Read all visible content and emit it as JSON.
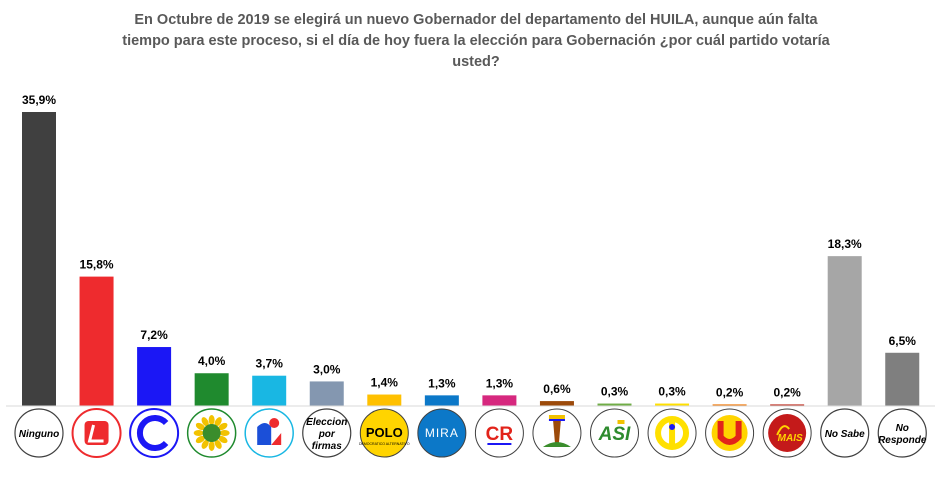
{
  "title": "En Octubre de 2019 se elegirá un nuevo Gobernador del departamento  del HUILA, aunque aún falta tiempo para este proceso, si el día de hoy fuera la elección para Gobernación ¿por cuál partido votaría usted?",
  "chart_data": {
    "type": "bar",
    "title": "En Octubre de 2019 se elegirá un nuevo Gobernador del departamento  del HUILA, aunque aún falta tiempo para este proceso, si el día de hoy fuera la elección para Gobernación ¿por cuál partido votaría usted?",
    "xlabel": "",
    "ylabel": "",
    "ylim": [
      0,
      36
    ],
    "grid": false,
    "legend": "none",
    "value_labels": [
      "35,9%",
      "15,8%",
      "7,2%",
      "4,0%",
      "3,7%",
      "3,0%",
      "1,4%",
      "1,3%",
      "1,3%",
      "0,6%",
      "0,3%",
      "0,3%",
      "0,2%",
      "0,2%",
      "18,3%",
      "6,5%"
    ],
    "values": [
      35.9,
      15.8,
      7.2,
      4.0,
      3.7,
      3.0,
      1.4,
      1.3,
      1.3,
      0.6,
      0.3,
      0.3,
      0.2,
      0.2,
      18.3,
      6.5
    ],
    "colors": [
      "#404040",
      "#ee2b2e",
      "#1b17f5",
      "#1f8a2e",
      "#19b7e3",
      "#8497b0",
      "#ffc000",
      "#0c78c8",
      "#d6287e",
      "#9c4a0a",
      "#70ad47",
      "#ffe000",
      "#ef7c10",
      "#c0392b",
      "#a6a6a6",
      "#7f7f7f"
    ],
    "categories": [
      {
        "text_lines": [
          "Ninguno"
        ],
        "icon": "text-circle"
      },
      {
        "text_lines": [],
        "icon": "liberal-party-logo"
      },
      {
        "text_lines": [],
        "icon": "conservative-party-logo"
      },
      {
        "text_lines": [],
        "icon": "green-party-sunflower-logo"
      },
      {
        "text_lines": [],
        "icon": "centro-democratico-logo"
      },
      {
        "text_lines": [
          "Eleccion",
          "por",
          "firmas"
        ],
        "icon": "text-circle"
      },
      {
        "text_lines": [
          "POLO"
        ],
        "small_text": "DEMOCRATICO ALTERNATIVO",
        "icon": "polo-logo"
      },
      {
        "text_lines": [
          "MIRA"
        ],
        "icon": "mira-logo"
      },
      {
        "text_lines": [
          "CR"
        ],
        "icon": "cambio-radical-logo"
      },
      {
        "text_lines": [],
        "icon": "colombia-humana-logo"
      },
      {
        "text_lines": [
          "ASI"
        ],
        "icon": "asi-logo"
      },
      {
        "text_lines": [],
        "icon": "yellow-party-logo"
      },
      {
        "text_lines": [
          "U"
        ],
        "icon": "partido-de-la-u-logo"
      },
      {
        "text_lines": [
          "MAIS"
        ],
        "icon": "mais-logo"
      },
      {
        "text_lines": [
          "No Sabe"
        ],
        "icon": "text-circle"
      },
      {
        "text_lines": [
          "No",
          "Responde"
        ],
        "icon": "text-circle"
      }
    ]
  }
}
